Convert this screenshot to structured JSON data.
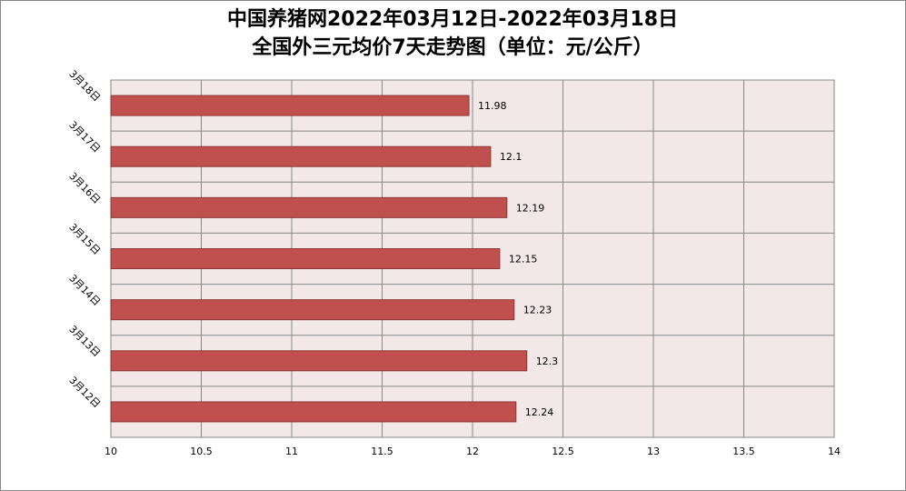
{
  "chart_data": {
    "type": "barh",
    "title": "中国养猪网2022年03月12日-2022年03月18日",
    "subtitle": "全国外三元均价7天走势图（单位：元/公斤）",
    "categories": [
      "3月12日",
      "3月13日",
      "3月14日",
      "3月15日",
      "3月16日",
      "3月17日",
      "3月18日"
    ],
    "values": [
      12.24,
      12.3,
      12.23,
      12.15,
      12.19,
      12.1,
      11.98
    ],
    "color": "#c0504d",
    "xlim": [
      10,
      14
    ],
    "xticks": [
      10,
      10.5,
      11,
      11.5,
      12,
      12.5,
      13,
      13.5,
      14
    ],
    "grid": true
  }
}
